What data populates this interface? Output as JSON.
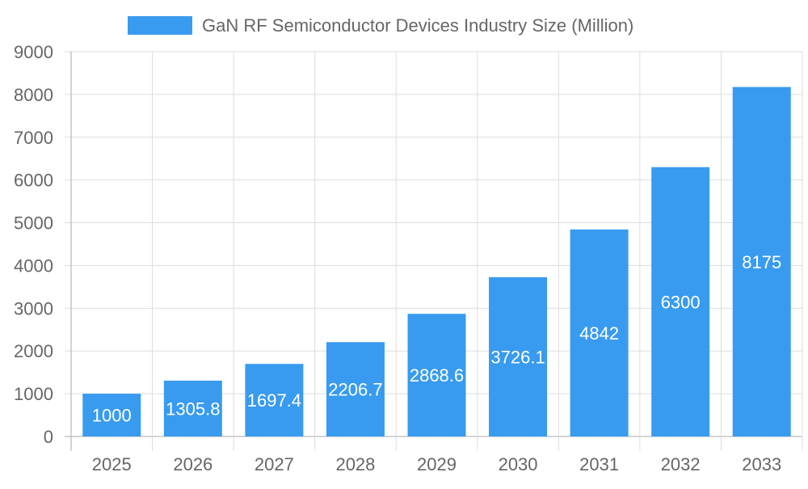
{
  "chart_data": {
    "type": "bar",
    "categories": [
      "2025",
      "2026",
      "2027",
      "2028",
      "2029",
      "2030",
      "2031",
      "2032",
      "2033"
    ],
    "series": [
      {
        "name": "GaN RF Semiconductor Devices Industry Size (Million)",
        "values": [
          1000,
          1305.8,
          1697.4,
          2206.7,
          2868.6,
          3726.1,
          4842,
          6300,
          8175
        ]
      }
    ],
    "data_labels": [
      "1000",
      "1305.8",
      "1697.4",
      "2206.7",
      "2868.6",
      "3726.1",
      "4842",
      "6300",
      "8175"
    ],
    "yticks": [
      "0",
      "1000",
      "2000",
      "3000",
      "4000",
      "5000",
      "6000",
      "7000",
      "8000",
      "9000"
    ],
    "ylim": [
      0,
      9000
    ],
    "grid": true,
    "legend_position": "top",
    "colors": {
      "bar": "#389bef",
      "text": "#666666",
      "grid": "#dddddd"
    }
  }
}
